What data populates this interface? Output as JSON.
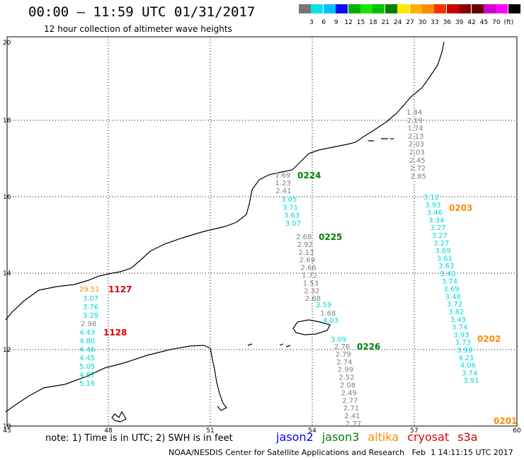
{
  "header": {
    "title": "00:00 – 11:59 UTC 01/31/2017",
    "subtitle": "12 hour collection of altimeter wave heights"
  },
  "colorbar": {
    "colors": [
      "#777777",
      "#00e5e5",
      "#00bfff",
      "#0a0aff",
      "#00b100",
      "#19e600",
      "#00c000",
      "#008000",
      "#ffe600",
      "#ffb000",
      "#ff8c00",
      "#ff3000",
      "#c80000",
      "#8b0000",
      "#660000",
      "#d000d0",
      "#ff00ff",
      "#000000"
    ],
    "labels": [
      "3",
      "6",
      "9",
      "12",
      "15",
      "18",
      "21",
      "24",
      "27",
      "30",
      "33",
      "36",
      "39",
      "42",
      "45",
      "70",
      "(ft)"
    ]
  },
  "axes": {
    "x_ticks": [
      "45",
      "48",
      "51",
      "54",
      "57",
      "60"
    ],
    "y_ticks": [
      "10",
      "12",
      "14",
      "16",
      "18",
      "20"
    ]
  },
  "map_labels": {
    "tracks": [
      {
        "color": "#7f7f7f",
        "values": [
          "1.84",
          "2.19",
          "1.74",
          "2.13",
          "2.03",
          "2.03",
          "2.45",
          "2.72",
          "2.85"
        ]
      },
      {
        "color": "#00d8d8",
        "values": [
          "3.12",
          "3.93",
          "3.46",
          "3.34",
          "3.27",
          "3.27",
          "3.27",
          "3.69",
          "3.61",
          "3.63",
          "3.40",
          "3.74",
          "3.69",
          "3.48",
          "3.72",
          "3.62",
          "3.43",
          "3.74",
          "3.93",
          "3.73",
          "3.98",
          "4.21",
          "4.06",
          "3.74",
          "3.91"
        ]
      },
      {
        "color": "#7f7f7f",
        "values": [
          "1.69",
          "1.23",
          "2.41"
        ]
      },
      {
        "color": "#00d8d8",
        "values": [
          "3.05",
          "3.71",
          "3.63",
          "3.07"
        ]
      },
      {
        "color": "#7f7f7f",
        "values": [
          "2.68",
          "2.92",
          "2.13",
          "2.69",
          "2.66",
          "1.72",
          "1.53",
          "2.32",
          "2.68"
        ]
      },
      {
        "color": "#00d8d8",
        "values": [
          "3.59"
        ]
      },
      {
        "color": "#7f7f7f",
        "values": [
          "1.68"
        ]
      },
      {
        "color": "#00d8d8",
        "values": [
          "4.03"
        ]
      },
      {
        "color": "#00d8d8",
        "values": [
          "3.09"
        ]
      },
      {
        "color": "#7f7f7f",
        "values": [
          "2.76",
          "2.79",
          "2.74",
          "2.99",
          "2.52",
          "2.08",
          "2.49",
          "2.77",
          "2.71",
          "2.41",
          "2.77"
        ]
      },
      {
        "color": "#00d8d8",
        "values": [
          "3.07",
          "3.76",
          "3.29"
        ]
      },
      {
        "color": "#7f7f7f",
        "values": [
          "2.98"
        ]
      },
      {
        "color": "#00d8d8",
        "values": [
          "4.43",
          "4.80",
          "4.46",
          "4.45",
          "5.05",
          "4.87",
          "5.16"
        ]
      }
    ],
    "orange_values": [
      "29.51"
    ],
    "passes": [
      {
        "label": "0224",
        "color": "#008000"
      },
      {
        "label": "0225",
        "color": "#008000"
      },
      {
        "label": "0226",
        "color": "#008000"
      },
      {
        "label": "0203",
        "color": "#ff8c00"
      },
      {
        "label": "0202",
        "color": "#ff8c00"
      },
      {
        "label": "0201",
        "color": "#ff8c00"
      },
      {
        "label": "1127",
        "color": "#e00000"
      },
      {
        "label": "1128",
        "color": "#e00000"
      }
    ]
  },
  "footer": {
    "note": "note: 1) Time is in UTC; 2) SWH is in feet",
    "satellites": [
      {
        "name": "jason2",
        "color": "#0000ff"
      },
      {
        "name": "jason3",
        "color": "#008000"
      },
      {
        "name": "altika",
        "color": "#ff8c00"
      },
      {
        "name": "cryosat",
        "color": "#e00000"
      },
      {
        "name": "s3a",
        "color": "#c80000"
      }
    ],
    "credit": "NOAA/NESDIS Center for Satellite Applications and Research   Feb  1 14:11:15 UTC 2017"
  }
}
